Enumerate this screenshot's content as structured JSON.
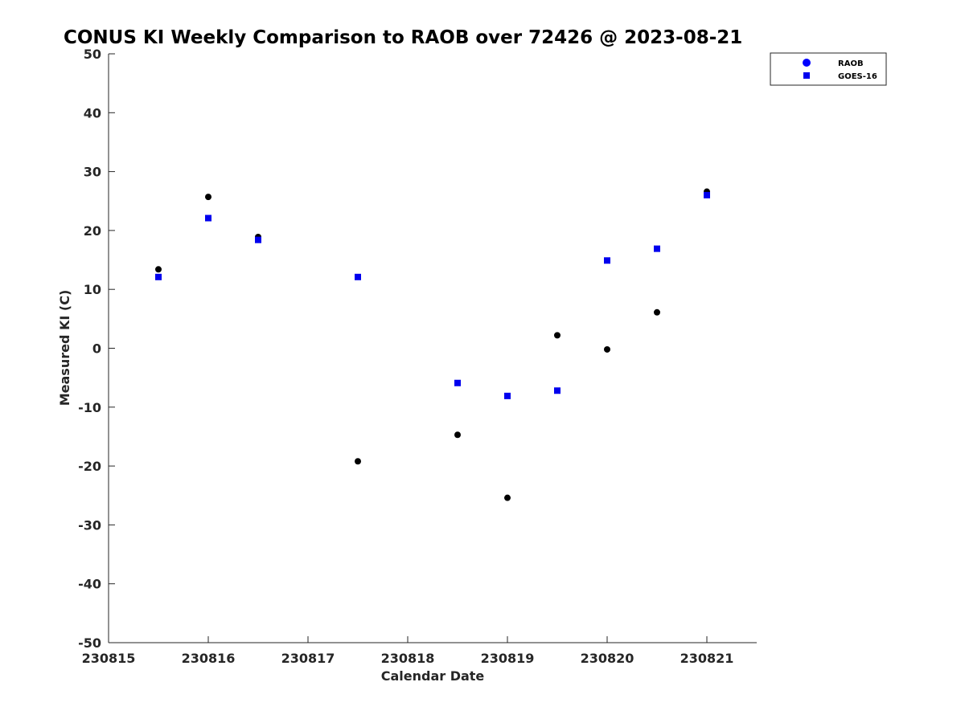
{
  "chart_data": {
    "type": "scatter",
    "title": "CONUS KI Weekly Comparison to RAOB over 72426 @ 2023-08-21",
    "xlabel": "Calendar Date",
    "ylabel": "Measured KI (C)",
    "xlim": [
      "2023-08-15T00:00",
      "2023-08-21T12:00"
    ],
    "ylim": [
      -50,
      50
    ],
    "xticks": [
      "2023-08-15",
      "2023-08-16",
      "2023-08-17",
      "2023-08-18",
      "2023-08-19",
      "2023-08-20",
      "2023-08-21"
    ],
    "xtick_labels": [
      "230815",
      "230816",
      "230817",
      "230818",
      "230819",
      "230820",
      "230821"
    ],
    "yticks": [
      -50,
      -40,
      -30,
      -20,
      -10,
      0,
      10,
      20,
      30,
      40,
      50
    ],
    "yticks_labels": [
      "-50",
      "-40",
      "-30",
      "-20",
      "-10",
      "0",
      "10",
      "20",
      "30",
      "40",
      "50"
    ],
    "grid": false,
    "legend_position": "top-right",
    "series": [
      {
        "name": "RAOB",
        "marker": "circle",
        "color": "#000000",
        "legend_color": "#0000ff",
        "points": [
          {
            "x": "2023-08-15T12:00",
            "y": 13.4
          },
          {
            "x": "2023-08-16T00:00",
            "y": 25.7
          },
          {
            "x": "2023-08-16T12:00",
            "y": 18.9
          },
          {
            "x": "2023-08-17T12:00",
            "y": -19.2
          },
          {
            "x": "2023-08-18T12:00",
            "y": -14.7
          },
          {
            "x": "2023-08-19T00:00",
            "y": -25.4
          },
          {
            "x": "2023-08-19T12:00",
            "y": 2.2
          },
          {
            "x": "2023-08-20T00:00",
            "y": -0.2
          },
          {
            "x": "2023-08-20T12:00",
            "y": 6.1
          },
          {
            "x": "2023-08-21T00:00",
            "y": 26.6
          }
        ]
      },
      {
        "name": "GOES-16",
        "marker": "square",
        "color": "#0000ee",
        "legend_color": "#0000ee",
        "points": [
          {
            "x": "2023-08-15T12:00",
            "y": 12.1
          },
          {
            "x": "2023-08-16T00:00",
            "y": 22.1
          },
          {
            "x": "2023-08-16T12:00",
            "y": 18.4
          },
          {
            "x": "2023-08-17T12:00",
            "y": 12.1
          },
          {
            "x": "2023-08-18T12:00",
            "y": -5.9
          },
          {
            "x": "2023-08-19T00:00",
            "y": -8.1
          },
          {
            "x": "2023-08-19T12:00",
            "y": -7.2
          },
          {
            "x": "2023-08-20T00:00",
            "y": 14.9
          },
          {
            "x": "2023-08-20T12:00",
            "y": 16.9
          },
          {
            "x": "2023-08-21T00:00",
            "y": 26.0
          }
        ]
      }
    ]
  }
}
